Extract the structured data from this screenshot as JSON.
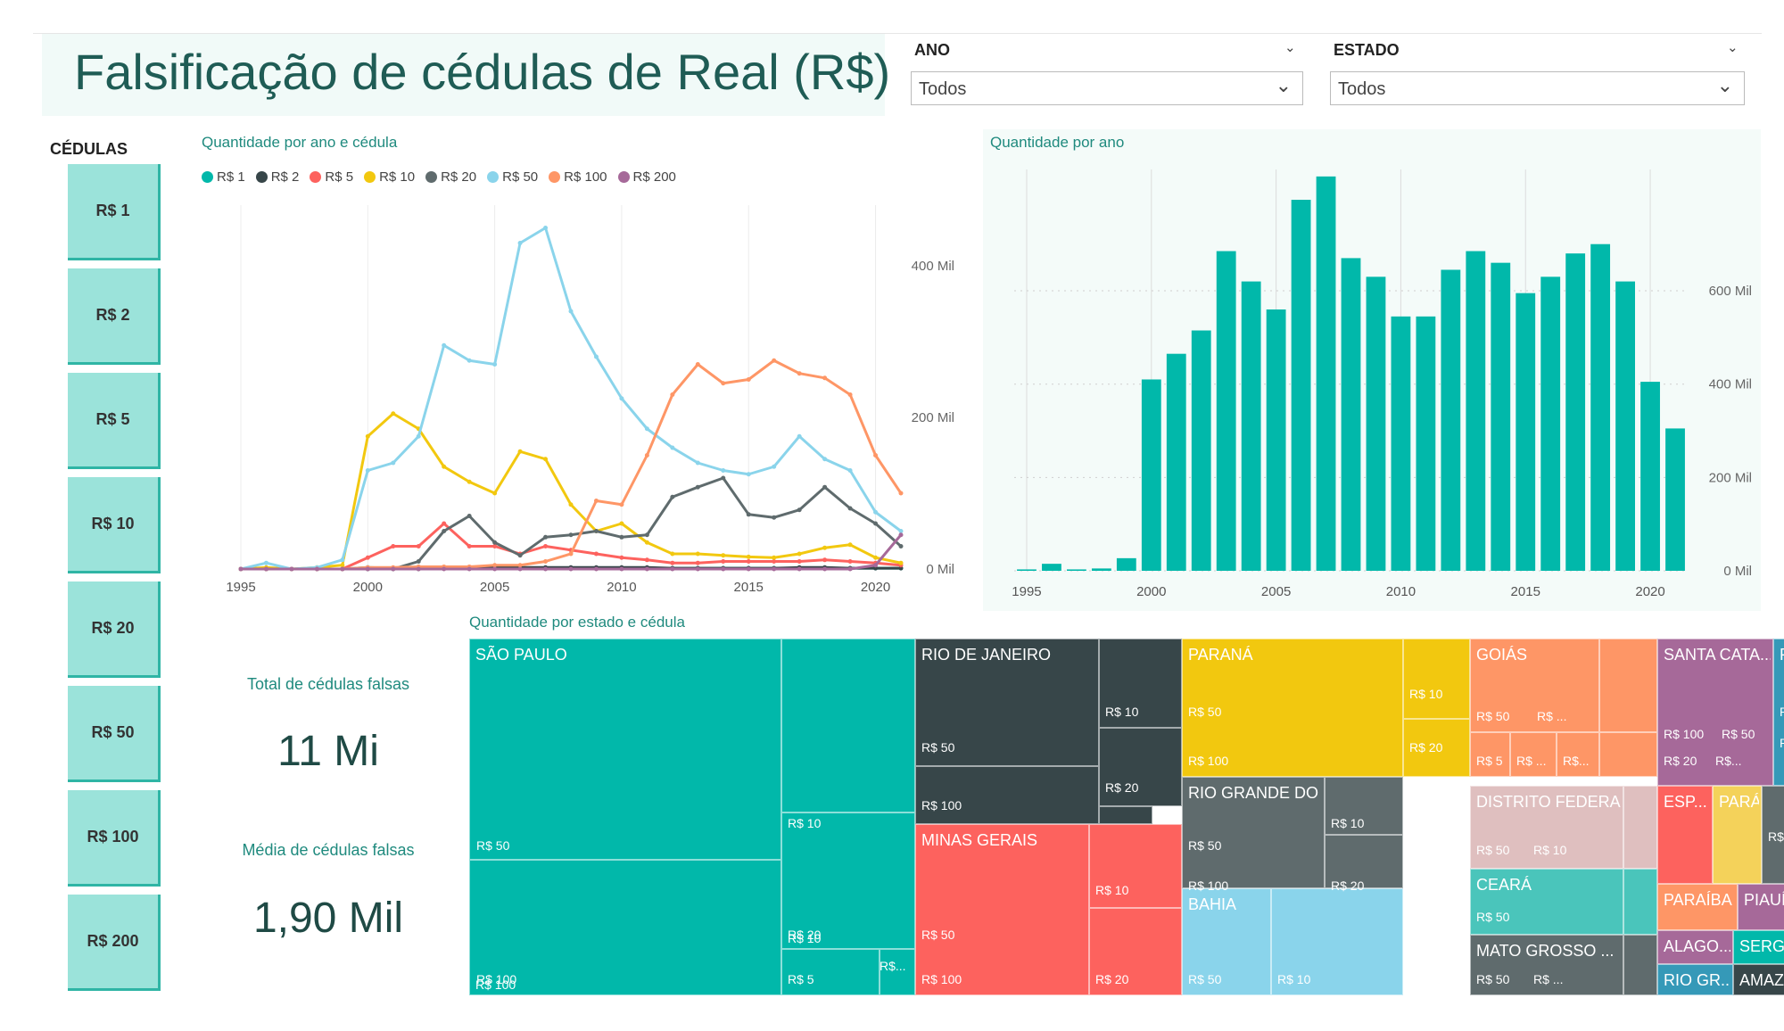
{
  "header": {
    "title": "Falsificação de cédulas de Real (R$)"
  },
  "filters": {
    "ano": {
      "label": "ANO",
      "value": "Todos"
    },
    "estado": {
      "label": "ESTADO",
      "value": "Todos"
    }
  },
  "cedulas": {
    "title": "CÉDULAS",
    "buttons": [
      "R$ 1",
      "R$ 2",
      "R$ 5",
      "R$ 10",
      "R$ 20",
      "R$ 50",
      "R$ 100",
      "R$ 200"
    ]
  },
  "cards": {
    "total_label": "Total de cédulas falsas",
    "total_value": "11 Mi",
    "media_label": "Média de cédulas falsas",
    "media_value": "1,90 Mil"
  },
  "colors": {
    "R$ 1": "#01b8aa",
    "R$ 2": "#374649",
    "R$ 5": "#fd625e",
    "R$ 10": "#f2c80f",
    "R$ 20": "#5f6b6d",
    "R$ 50": "#8ad4eb",
    "R$ 100": "#fe9666",
    "R$ 200": "#a66999",
    "bar": "#01b8aa",
    "accent": "#1f8a7e"
  },
  "chart_data": [
    {
      "type": "line",
      "title": "Quantidade por ano e cédula",
      "x": [
        1995,
        1996,
        1997,
        1998,
        1999,
        2000,
        2001,
        2002,
        2003,
        2004,
        2005,
        2006,
        2007,
        2008,
        2009,
        2010,
        2011,
        2012,
        2013,
        2014,
        2015,
        2016,
        2017,
        2018,
        2019,
        2020,
        2021
      ],
      "ylim": [
        0,
        480000
      ],
      "yticks": [
        0,
        200000,
        400000
      ],
      "ytick_labels": [
        "0 Mil",
        "200 Mil",
        "400 Mil"
      ],
      "xticks": [
        1995,
        2000,
        2005,
        2010,
        2015,
        2020
      ],
      "legend_position": "top-left",
      "series": [
        {
          "name": "R$ 1",
          "values": [
            0,
            0,
            0,
            0,
            0,
            2000,
            1000,
            1000,
            1000,
            1000,
            1000,
            1000,
            1000,
            1000,
            1000,
            1000,
            1000,
            1000,
            1000,
            1000,
            1000,
            1000,
            1000,
            1000,
            1000,
            1000,
            1000
          ]
        },
        {
          "name": "R$ 2",
          "values": [
            0,
            0,
            0,
            0,
            0,
            0,
            0,
            0,
            1000,
            2000,
            2000,
            2000,
            2000,
            2000,
            2000,
            2000,
            2000,
            1000,
            1000,
            1000,
            1000,
            1000,
            2000,
            2000,
            1000,
            1000,
            1000
          ]
        },
        {
          "name": "R$ 5",
          "values": [
            0,
            0,
            0,
            0,
            0,
            15000,
            30000,
            30000,
            60000,
            30000,
            30000,
            20000,
            30000,
            25000,
            20000,
            15000,
            12000,
            8000,
            8000,
            10000,
            10000,
            10000,
            10000,
            12000,
            10000,
            8000,
            5000
          ]
        },
        {
          "name": "R$ 10",
          "values": [
            0,
            2000,
            0,
            2000,
            5000,
            175000,
            205000,
            185000,
            135000,
            115000,
            100000,
            155000,
            145000,
            85000,
            50000,
            60000,
            35000,
            20000,
            20000,
            18000,
            16000,
            15000,
            20000,
            28000,
            32000,
            15000,
            8000
          ]
        },
        {
          "name": "R$ 20",
          "values": [
            0,
            0,
            0,
            0,
            0,
            0,
            0,
            10000,
            50000,
            70000,
            35000,
            18000,
            42000,
            45000,
            50000,
            42000,
            45000,
            95000,
            108000,
            120000,
            72000,
            68000,
            78000,
            108000,
            80000,
            60000,
            30000
          ]
        },
        {
          "name": "R$ 50",
          "values": [
            0,
            8000,
            0,
            2000,
            12000,
            130000,
            140000,
            175000,
            295000,
            275000,
            270000,
            430000,
            450000,
            340000,
            280000,
            225000,
            185000,
            160000,
            140000,
            130000,
            125000,
            135000,
            175000,
            145000,
            130000,
            75000,
            50000
          ]
        },
        {
          "name": "R$ 100",
          "values": [
            0,
            0,
            0,
            0,
            0,
            2000,
            2000,
            3000,
            3000,
            3000,
            5000,
            5000,
            10000,
            20000,
            90000,
            85000,
            150000,
            230000,
            270000,
            245000,
            250000,
            275000,
            258000,
            252000,
            230000,
            150000,
            100000
          ]
        },
        {
          "name": "R$ 200",
          "values": [
            0,
            0,
            0,
            0,
            0,
            0,
            0,
            0,
            0,
            0,
            0,
            0,
            0,
            0,
            0,
            0,
            0,
            0,
            0,
            0,
            0,
            0,
            0,
            0,
            0,
            5000,
            45000
          ]
        }
      ]
    },
    {
      "type": "bar",
      "title": "Quantidade por ano",
      "categories": [
        1995,
        1996,
        1997,
        1998,
        1999,
        2000,
        2001,
        2002,
        2003,
        2004,
        2005,
        2006,
        2007,
        2008,
        2009,
        2010,
        2011,
        2012,
        2013,
        2014,
        2015,
        2016,
        2017,
        2018,
        2019,
        2020,
        2021
      ],
      "values": [
        3000,
        15000,
        3000,
        5000,
        27000,
        410000,
        465000,
        515000,
        685000,
        620000,
        560000,
        795000,
        845000,
        670000,
        630000,
        545000,
        545000,
        645000,
        685000,
        660000,
        595000,
        630000,
        680000,
        700000,
        620000,
        405000,
        305000
      ],
      "ylim": [
        0,
        860000
      ],
      "yticks": [
        0,
        200000,
        400000,
        600000
      ],
      "ytick_labels": [
        "0 Mil",
        "200 Mil",
        "400 Mil",
        "600 Mil"
      ],
      "xticks": [
        1995,
        2000,
        2005,
        2010,
        2015,
        2020
      ],
      "grid": true
    },
    {
      "type": "treemap",
      "title": "Quantidade por estado e cédula",
      "states": [
        "SÃO PAULO",
        "RIO DE JANEIRO",
        "PARANÁ",
        "GOIÁS",
        "SANTA CATA...",
        "PERNAMB...",
        "MINAS GERAIS",
        "RIO GRANDE DO SUL",
        "DISTRITO FEDERAL",
        "ESP...",
        "PARÁ",
        "BAHIA",
        "CEARÁ",
        "PARAÍBA",
        "PIAUÍ",
        "MATO GROSSO ...",
        "ALAGO...",
        "SERGI...",
        "RIO GR...",
        "AMAZ..."
      ],
      "cell_labels": [
        "R$ 50",
        "R$ 100",
        "R$ 10",
        "R$ 20",
        "R$ 5",
        "R$...",
        "R$ ...",
        "R$..."
      ]
    }
  ]
}
